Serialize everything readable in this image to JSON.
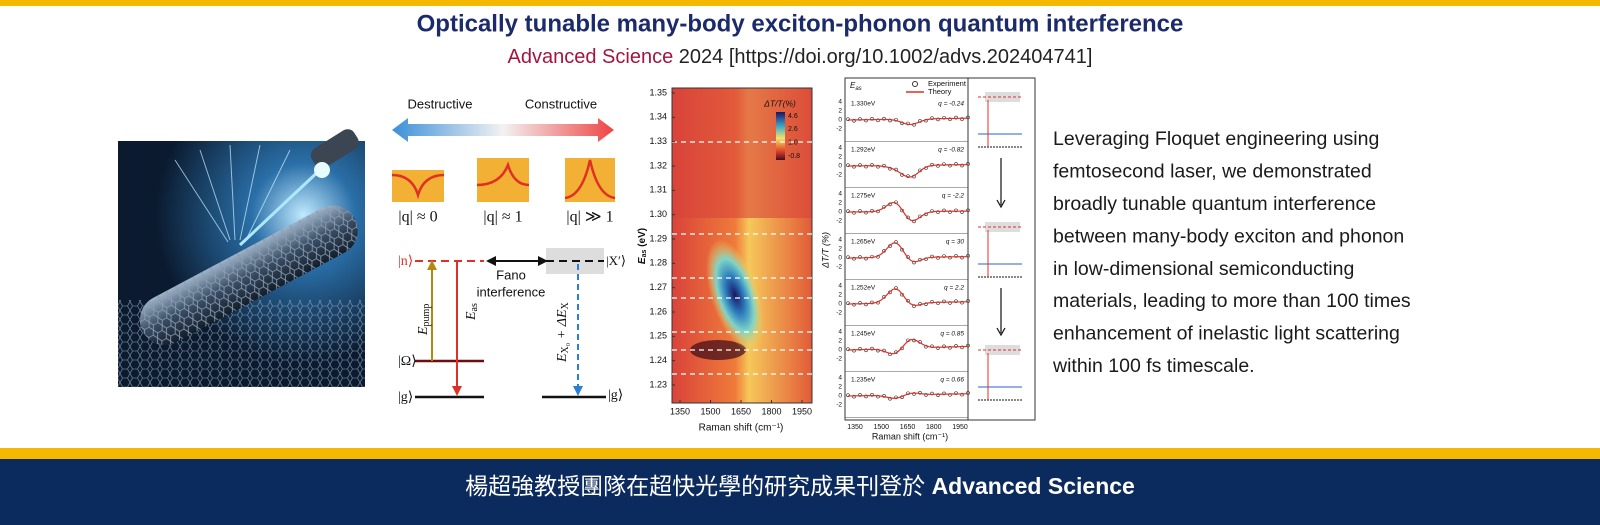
{
  "header": {
    "title": "Optically tunable many-body exciton-phonon quantum interference",
    "journal": "Advanced Science",
    "citation": " 2024 [https://doi.org/10.1002/advs.202404741]"
  },
  "schematic": {
    "destructive": "Destructive",
    "constructive": "Constructive",
    "q_labels": [
      "|q| ≈ 0",
      "|q| ≈ 1",
      "|q| ≫ 1"
    ],
    "state_n": "|n⟩",
    "state_omega": "|Ω⟩",
    "state_g_left": "|g⟩",
    "state_x": "|X′⟩",
    "state_g_right": "|g⟩",
    "fano": "Fano",
    "interference": "interference",
    "e_pump": "E",
    "e_pump_sub": "pump",
    "e_as": "E",
    "e_as_sub": "as",
    "e_x": "E",
    "e_x_sub": "X₀",
    "e_x_rest": " + ΔE",
    "e_x_rest_sub": "X"
  },
  "heatmap": {
    "y_label": "E",
    "y_label_sub": "as",
    "y_label_unit": " (eV)",
    "x_label": "Raman shift (cm⁻¹)",
    "yticks": [
      "1.35",
      "1.34",
      "1.33",
      "1.32",
      "1.31",
      "1.30",
      "1.29",
      "1.28",
      "1.27",
      "1.26",
      "1.25",
      "1.24",
      "1.23"
    ],
    "xticks": [
      "1350",
      "1500",
      "1650",
      "1800",
      "1950"
    ],
    "colorbar_title": "ΔT/T(%)",
    "colorbar_ticks": [
      "4.6",
      "2.6",
      "1.0",
      "-0.8"
    ]
  },
  "spectra": {
    "corner_label": "E",
    "corner_label_sub": "as",
    "legend": [
      "Experiment",
      "Theory"
    ],
    "energies": [
      "1.330eV",
      "1.292eV",
      "1.275eV",
      "1.265eV",
      "1.252eV",
      "1.245eV",
      "1.235eV"
    ],
    "q_values": [
      "q = -0.24",
      "q = -0.82",
      "q = -2.2",
      "q = 30",
      "q = 2.2",
      "q = 0.85",
      "q = 0.66"
    ],
    "yticks": [
      "4",
      "2",
      "0",
      "-2"
    ],
    "xticks": [
      "1350",
      "1500",
      "1650",
      "1800",
      "1950"
    ],
    "x_label": "Raman shift (cm⁻¹)",
    "y_label": "ΔT/T (%)"
  },
  "description": [
    "Leveraging Floquet engineering using",
    "femtosecond laser, we demonstrated",
    "broadly tunable quantum interference",
    "between many-body exciton and phonon",
    "in low-dimensional semiconducting",
    "materials, leading to more than 100 times",
    "enhancement of inelastic light scattering",
    "within 100 fs timescale."
  ],
  "footer": {
    "text": "楊超強教授團隊在超快光學的研究成果刊登於 ",
    "bold": "Advanced Science"
  }
}
